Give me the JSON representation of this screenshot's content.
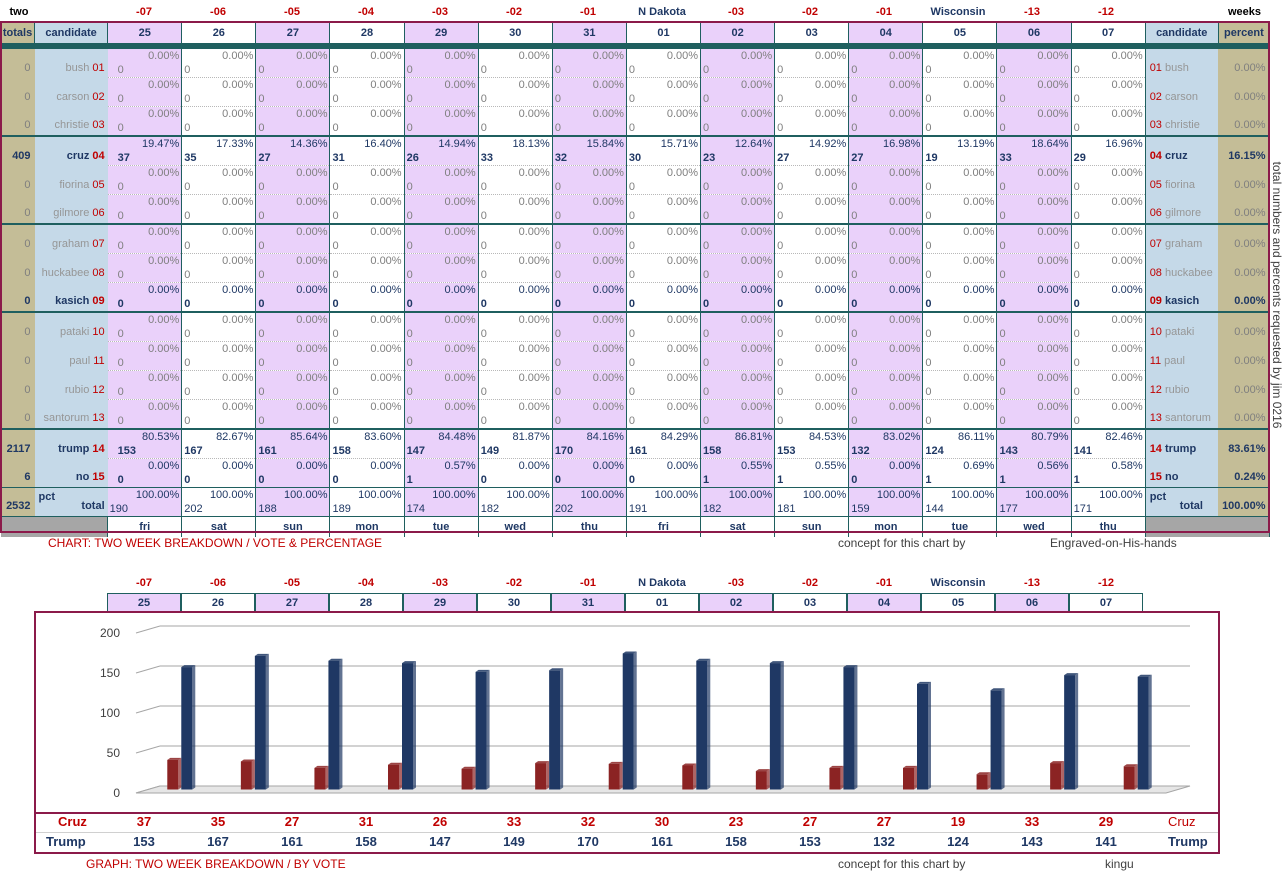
{
  "top_labels": {
    "left": "two",
    "right": "weeks",
    "weeks": [
      "-07",
      "-06",
      "-05",
      "-04",
      "-03",
      "-02",
      "-01",
      "N Dakota",
      "-03",
      "-02",
      "-01",
      "Wisconsin",
      "-13",
      "-12"
    ]
  },
  "header": {
    "totals": "totals",
    "candidate": "candidate",
    "candidate_right": "candidate",
    "percent": "percent",
    "dates": [
      "25",
      "26",
      "27",
      "28",
      "29",
      "30",
      "31",
      "01",
      "02",
      "03",
      "04",
      "05",
      "06",
      "07"
    ]
  },
  "candidates": [
    {
      "num": "01",
      "name": "bush",
      "total": "0",
      "percent": "0.00%",
      "votes": [
        "0",
        "0",
        "0",
        "0",
        "0",
        "0",
        "0",
        "0",
        "0",
        "0",
        "0",
        "0",
        "0",
        "0"
      ],
      "pcts": [
        "0.00%",
        "0.00%",
        "0.00%",
        "0.00%",
        "0.00%",
        "0.00%",
        "0.00%",
        "0.00%",
        "0.00%",
        "0.00%",
        "0.00%",
        "0.00%",
        "0.00%",
        "0.00%"
      ]
    },
    {
      "num": "02",
      "name": "carson",
      "total": "0",
      "percent": "0.00%",
      "votes": [
        "0",
        "0",
        "0",
        "0",
        "0",
        "0",
        "0",
        "0",
        "0",
        "0",
        "0",
        "0",
        "0",
        "0"
      ],
      "pcts": [
        "0.00%",
        "0.00%",
        "0.00%",
        "0.00%",
        "0.00%",
        "0.00%",
        "0.00%",
        "0.00%",
        "0.00%",
        "0.00%",
        "0.00%",
        "0.00%",
        "0.00%",
        "0.00%"
      ]
    },
    {
      "num": "03",
      "name": "christie",
      "total": "0",
      "percent": "0.00%",
      "votes": [
        "0",
        "0",
        "0",
        "0",
        "0",
        "0",
        "0",
        "0",
        "0",
        "0",
        "0",
        "0",
        "0",
        "0"
      ],
      "pcts": [
        "0.00%",
        "0.00%",
        "0.00%",
        "0.00%",
        "0.00%",
        "0.00%",
        "0.00%",
        "0.00%",
        "0.00%",
        "0.00%",
        "0.00%",
        "0.00%",
        "0.00%",
        "0.00%"
      ]
    },
    {
      "num": "04",
      "name": "cruz",
      "total": "409",
      "percent": "16.15%",
      "votes": [
        "37",
        "35",
        "27",
        "31",
        "26",
        "33",
        "32",
        "30",
        "23",
        "27",
        "27",
        "19",
        "33",
        "29"
      ],
      "pcts": [
        "19.47%",
        "17.33%",
        "14.36%",
        "16.40%",
        "14.94%",
        "18.13%",
        "15.84%",
        "15.71%",
        "12.64%",
        "14.92%",
        "16.98%",
        "13.19%",
        "18.64%",
        "16.96%"
      ]
    },
    {
      "num": "05",
      "name": "fiorina",
      "total": "0",
      "percent": "0.00%",
      "votes": [
        "0",
        "0",
        "0",
        "0",
        "0",
        "0",
        "0",
        "0",
        "0",
        "0",
        "0",
        "0",
        "0",
        "0"
      ],
      "pcts": [
        "0.00%",
        "0.00%",
        "0.00%",
        "0.00%",
        "0.00%",
        "0.00%",
        "0.00%",
        "0.00%",
        "0.00%",
        "0.00%",
        "0.00%",
        "0.00%",
        "0.00%",
        "0.00%"
      ]
    },
    {
      "num": "06",
      "name": "gilmore",
      "total": "0",
      "percent": "0.00%",
      "votes": [
        "0",
        "0",
        "0",
        "0",
        "0",
        "0",
        "0",
        "0",
        "0",
        "0",
        "0",
        "0",
        "0",
        "0"
      ],
      "pcts": [
        "0.00%",
        "0.00%",
        "0.00%",
        "0.00%",
        "0.00%",
        "0.00%",
        "0.00%",
        "0.00%",
        "0.00%",
        "0.00%",
        "0.00%",
        "0.00%",
        "0.00%",
        "0.00%"
      ]
    },
    {
      "num": "07",
      "name": "graham",
      "total": "0",
      "percent": "0.00%",
      "votes": [
        "0",
        "0",
        "0",
        "0",
        "0",
        "0",
        "0",
        "0",
        "0",
        "0",
        "0",
        "0",
        "0",
        "0"
      ],
      "pcts": [
        "0.00%",
        "0.00%",
        "0.00%",
        "0.00%",
        "0.00%",
        "0.00%",
        "0.00%",
        "0.00%",
        "0.00%",
        "0.00%",
        "0.00%",
        "0.00%",
        "0.00%",
        "0.00%"
      ]
    },
    {
      "num": "08",
      "name": "huckabee",
      "total": "0",
      "percent": "0.00%",
      "votes": [
        "0",
        "0",
        "0",
        "0",
        "0",
        "0",
        "0",
        "0",
        "0",
        "0",
        "0",
        "0",
        "0",
        "0"
      ],
      "pcts": [
        "0.00%",
        "0.00%",
        "0.00%",
        "0.00%",
        "0.00%",
        "0.00%",
        "0.00%",
        "0.00%",
        "0.00%",
        "0.00%",
        "0.00%",
        "0.00%",
        "0.00%",
        "0.00%"
      ]
    },
    {
      "num": "09",
      "name": "kasich",
      "total": "0",
      "percent": "0.00%",
      "active": true,
      "votes": [
        "0",
        "0",
        "0",
        "0",
        "0",
        "0",
        "0",
        "0",
        "0",
        "0",
        "0",
        "0",
        "0",
        "0"
      ],
      "pcts": [
        "0.00%",
        "0.00%",
        "0.00%",
        "0.00%",
        "0.00%",
        "0.00%",
        "0.00%",
        "0.00%",
        "0.00%",
        "0.00%",
        "0.00%",
        "0.00%",
        "0.00%",
        "0.00%"
      ]
    },
    {
      "num": "10",
      "name": "pataki",
      "total": "0",
      "percent": "0.00%",
      "votes": [
        "0",
        "0",
        "0",
        "0",
        "0",
        "0",
        "0",
        "0",
        "0",
        "0",
        "0",
        "0",
        "0",
        "0"
      ],
      "pcts": [
        "0.00%",
        "0.00%",
        "0.00%",
        "0.00%",
        "0.00%",
        "0.00%",
        "0.00%",
        "0.00%",
        "0.00%",
        "0.00%",
        "0.00%",
        "0.00%",
        "0.00%",
        "0.00%"
      ]
    },
    {
      "num": "11",
      "name": "paul",
      "total": "0",
      "percent": "0.00%",
      "votes": [
        "0",
        "0",
        "0",
        "0",
        "0",
        "0",
        "0",
        "0",
        "0",
        "0",
        "0",
        "0",
        "0",
        "0"
      ],
      "pcts": [
        "0.00%",
        "0.00%",
        "0.00%",
        "0.00%",
        "0.00%",
        "0.00%",
        "0.00%",
        "0.00%",
        "0.00%",
        "0.00%",
        "0.00%",
        "0.00%",
        "0.00%",
        "0.00%"
      ]
    },
    {
      "num": "12",
      "name": "rubio",
      "total": "0",
      "percent": "0.00%",
      "votes": [
        "0",
        "0",
        "0",
        "0",
        "0",
        "0",
        "0",
        "0",
        "0",
        "0",
        "0",
        "0",
        "0",
        "0"
      ],
      "pcts": [
        "0.00%",
        "0.00%",
        "0.00%",
        "0.00%",
        "0.00%",
        "0.00%",
        "0.00%",
        "0.00%",
        "0.00%",
        "0.00%",
        "0.00%",
        "0.00%",
        "0.00%",
        "0.00%"
      ]
    },
    {
      "num": "13",
      "name": "santorum",
      "total": "0",
      "percent": "0.00%",
      "votes": [
        "0",
        "0",
        "0",
        "0",
        "0",
        "0",
        "0",
        "0",
        "0",
        "0",
        "0",
        "0",
        "0",
        "0"
      ],
      "pcts": [
        "0.00%",
        "0.00%",
        "0.00%",
        "0.00%",
        "0.00%",
        "0.00%",
        "0.00%",
        "0.00%",
        "0.00%",
        "0.00%",
        "0.00%",
        "0.00%",
        "0.00%",
        "0.00%"
      ]
    },
    {
      "num": "14",
      "name": "trump",
      "total": "2117",
      "percent": "83.61%",
      "votes": [
        "153",
        "167",
        "161",
        "158",
        "147",
        "149",
        "170",
        "161",
        "158",
        "153",
        "132",
        "124",
        "143",
        "141"
      ],
      "pcts": [
        "80.53%",
        "82.67%",
        "85.64%",
        "83.60%",
        "84.48%",
        "81.87%",
        "84.16%",
        "84.29%",
        "86.81%",
        "84.53%",
        "83.02%",
        "86.11%",
        "80.79%",
        "82.46%"
      ]
    },
    {
      "num": "15",
      "name": "no",
      "total": "6",
      "percent": "0.24%",
      "votes": [
        "0",
        "0",
        "0",
        "0",
        "1",
        "0",
        "0",
        "0",
        "1",
        "1",
        "0",
        "1",
        "1",
        "1"
      ],
      "pcts": [
        "0.00%",
        "0.00%",
        "0.00%",
        "0.00%",
        "0.57%",
        "0.00%",
        "0.00%",
        "0.00%",
        "0.55%",
        "0.55%",
        "0.00%",
        "0.69%",
        "0.56%",
        "0.58%"
      ]
    }
  ],
  "totals_row": {
    "grand_total": "2532",
    "pct_label": "pct",
    "total_label": "total",
    "percent": "100.00%",
    "daily_totals": [
      "190",
      "202",
      "188",
      "189",
      "174",
      "182",
      "202",
      "191",
      "182",
      "181",
      "159",
      "144",
      "177",
      "171"
    ],
    "daily_pct": [
      "100.00%",
      "100.00%",
      "100.00%",
      "100.00%",
      "100.00%",
      "100.00%",
      "100.00%",
      "100.00%",
      "100.00%",
      "100.00%",
      "100.00%",
      "100.00%",
      "100.00%",
      "100.00%"
    ]
  },
  "days": [
    "fri",
    "sat",
    "sun",
    "mon",
    "tue",
    "wed",
    "thu",
    "fri",
    "sat",
    "sun",
    "mon",
    "tue",
    "wed",
    "thu"
  ],
  "captions": {
    "chart_title": "CHART: TWO WEEK BREAKDOWN / VOTE & PERCENTAGE",
    "concept1": "concept for this chart by",
    "author1": "Engraved-on-His-hands",
    "graph_title": "GRAPH: TWO WEEK BREAKDOWN / BY VOTE",
    "concept2": "concept for this chart by",
    "author2": "kingu",
    "vertical": "total numbers and percents requested by          jim 0216"
  },
  "colors": {
    "cruz": "#8b2323",
    "trump": "#1f3864",
    "accent": "#c00000",
    "frame": "#8b1a4a"
  },
  "chart_data": {
    "type": "bar",
    "categories": [
      "25",
      "26",
      "27",
      "28",
      "29",
      "30",
      "31",
      "01",
      "02",
      "03",
      "04",
      "05",
      "06",
      "07"
    ],
    "series": [
      {
        "name": "Cruz",
        "values": [
          37,
          35,
          27,
          31,
          26,
          33,
          32,
          30,
          23,
          27,
          27,
          19,
          33,
          29
        ]
      },
      {
        "name": "Trump",
        "values": [
          153,
          167,
          161,
          158,
          147,
          149,
          170,
          161,
          158,
          153,
          132,
          124,
          143,
          141
        ]
      }
    ],
    "yticks": [
      "200",
      "150",
      "100",
      "50",
      "0"
    ],
    "ylim": [
      0,
      200
    ],
    "grid": true,
    "title": "",
    "xlabel": "",
    "ylabel": ""
  }
}
